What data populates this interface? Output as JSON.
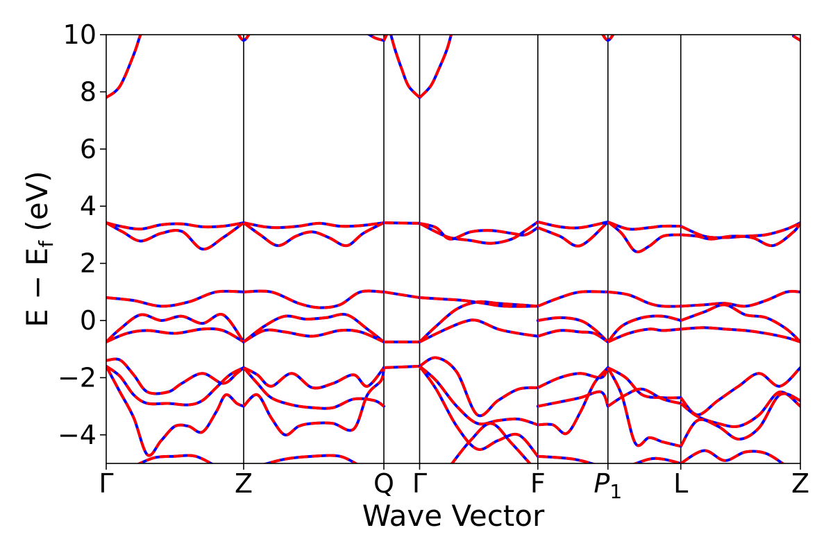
{
  "chart_data": {
    "type": "line",
    "xlabel": "Wave Vector",
    "ylabel": "E − E",
    "ylabel_sub": "f",
    "ylabel_unit": " (eV)",
    "ylim": [
      -5,
      10
    ],
    "yticks": [
      -4,
      -2,
      0,
      2,
      4,
      6,
      8,
      10
    ],
    "ytick_labels": [
      "−4",
      "−2",
      "0",
      "2",
      "4",
      "6",
      "8",
      "10"
    ],
    "xlim": [
      0,
      5.05
    ],
    "kpoints": [
      {
        "x": 0.0,
        "label": "Γ",
        "sub": ""
      },
      {
        "x": 1.0,
        "label": "Z",
        "sub": ""
      },
      {
        "x": 2.02,
        "label": "Q",
        "sub": ""
      },
      {
        "x": 2.28,
        "label": "Γ",
        "sub": ""
      },
      {
        "x": 3.14,
        "label": "F",
        "sub": ""
      },
      {
        "x": 3.65,
        "label": "P",
        "sub": "1"
      },
      {
        "x": 4.18,
        "label": "L",
        "sub": ""
      },
      {
        "x": 5.05,
        "label": "Z",
        "sub": ""
      }
    ],
    "line_colors": {
      "under": "#0000ff",
      "over": "#ff0000"
    },
    "series": [
      {
        "x": [
          0,
          0.1,
          0.2,
          0.25,
          0.3
        ],
        "y": [
          7.8,
          8.2,
          9.3,
          10,
          10.5
        ]
      },
      {
        "x": [
          0.95,
          1.0,
          1.05
        ],
        "y": [
          10.1,
          9.8,
          10.1
        ]
      },
      {
        "x": [
          1.85,
          1.95,
          2.02
        ],
        "y": [
          10.2,
          9.9,
          9.8
        ]
      },
      {
        "x": [
          2.02,
          2.06
        ],
        "y": [
          9.8,
          10.2
        ]
      },
      {
        "x": [
          2.28,
          2.2,
          2.15,
          2.1,
          2.06
        ],
        "y": [
          7.8,
          8.2,
          8.8,
          9.5,
          10.2
        ]
      },
      {
        "x": [
          2.28,
          2.36,
          2.42,
          2.48,
          2.52
        ],
        "y": [
          7.8,
          8.2,
          8.8,
          9.5,
          10.2
        ]
      },
      {
        "x": [
          3.6,
          3.65,
          3.7
        ],
        "y": [
          10.1,
          9.8,
          10.1
        ]
      },
      {
        "x": [
          5.0,
          5.05
        ],
        "y": [
          9.95,
          9.8
        ]
      },
      {
        "x": [
          0,
          0.1,
          0.25,
          0.4,
          0.55,
          0.7,
          0.85,
          1.0
        ],
        "y": [
          3.42,
          3.3,
          3.2,
          3.35,
          3.38,
          3.28,
          3.3,
          3.42
        ]
      },
      {
        "x": [
          0,
          0.12,
          0.25,
          0.4,
          0.55,
          0.7,
          0.85,
          1.0
        ],
        "y": [
          3.42,
          3.1,
          2.78,
          3.05,
          3.12,
          2.5,
          2.9,
          3.42
        ]
      },
      {
        "x": [
          1.0,
          1.15,
          1.25,
          1.4,
          1.55,
          1.7,
          1.85,
          2.02
        ],
        "y": [
          3.42,
          3.28,
          3.25,
          3.3,
          3.4,
          3.3,
          3.32,
          3.42
        ]
      },
      {
        "x": [
          1.0,
          1.12,
          1.25,
          1.38,
          1.5,
          1.62,
          1.75,
          1.87,
          2.02
        ],
        "y": [
          3.42,
          3.0,
          2.62,
          2.95,
          3.1,
          2.9,
          2.62,
          3.05,
          3.42
        ]
      },
      {
        "x": [
          2.02,
          2.28
        ],
        "y": [
          3.42,
          3.4
        ]
      },
      {
        "x": [
          2.28,
          2.4,
          2.5,
          2.65,
          2.8,
          2.95,
          3.05,
          3.14
        ],
        "y": [
          3.4,
          3.1,
          2.9,
          2.8,
          2.7,
          2.85,
          3.15,
          3.45
        ]
      },
      {
        "x": [
          2.28,
          2.4,
          2.5,
          2.65,
          2.8,
          2.95,
          3.05,
          3.14
        ],
        "y": [
          3.4,
          3.25,
          2.85,
          3.1,
          3.15,
          3.05,
          3.0,
          3.25
        ]
      },
      {
        "x": [
          3.14,
          3.3,
          3.45,
          3.65
        ],
        "y": [
          3.45,
          3.28,
          3.25,
          3.45
        ]
      },
      {
        "x": [
          3.14,
          3.3,
          3.45,
          3.65
        ],
        "y": [
          3.25,
          2.95,
          2.62,
          3.45
        ]
      },
      {
        "x": [
          3.65,
          3.8,
          3.95,
          4.05,
          4.18
        ],
        "y": [
          3.45,
          3.2,
          3.25,
          3.3,
          3.3
        ]
      },
      {
        "x": [
          3.65,
          3.75,
          3.85,
          3.95,
          4.05,
          4.18
        ],
        "y": [
          3.45,
          3.05,
          2.42,
          2.6,
          2.95,
          3.0
        ]
      },
      {
        "x": [
          4.18,
          4.35,
          4.5,
          4.65,
          4.8,
          4.95,
          5.05
        ],
        "y": [
          3.3,
          2.95,
          2.9,
          2.95,
          3.0,
          3.2,
          3.42
        ]
      },
      {
        "x": [
          4.18,
          4.3,
          4.4,
          4.55,
          4.7,
          4.85,
          5.0,
          5.05
        ],
        "y": [
          3.0,
          2.95,
          2.85,
          2.95,
          2.9,
          2.62,
          3.1,
          3.42
        ]
      },
      {
        "x": [
          0,
          0.2,
          0.4,
          0.6,
          0.8,
          1.0
        ],
        "y": [
          0.8,
          0.7,
          0.5,
          0.65,
          1.0,
          1.0
        ]
      },
      {
        "x": [
          0,
          0.1,
          0.25,
          0.4,
          0.55,
          0.7,
          0.85,
          1.0
        ],
        "y": [
          -0.75,
          -0.3,
          0.2,
          0.0,
          0.15,
          -0.1,
          0.2,
          -0.75
        ]
      },
      {
        "x": [
          0,
          0.15,
          0.3,
          0.5,
          0.7,
          0.85,
          1.0
        ],
        "y": [
          -0.75,
          -0.45,
          -0.35,
          -0.45,
          -0.3,
          -0.35,
          -0.75
        ]
      },
      {
        "x": [
          1.0,
          1.2,
          1.4,
          1.55,
          1.7,
          1.85,
          2.02
        ],
        "y": [
          1.0,
          1.0,
          0.6,
          0.45,
          0.55,
          1.0,
          1.0
        ]
      },
      {
        "x": [
          1.0,
          1.15,
          1.3,
          1.45,
          1.6,
          1.75,
          1.9,
          2.02
        ],
        "y": [
          -0.75,
          -0.2,
          0.15,
          0.05,
          0.1,
          0.2,
          -0.3,
          -0.75
        ]
      },
      {
        "x": [
          1.0,
          1.15,
          1.3,
          1.5,
          1.7,
          1.85,
          2.02
        ],
        "y": [
          -0.75,
          -0.35,
          -0.4,
          -0.55,
          -0.35,
          -0.4,
          -0.75
        ]
      },
      {
        "x": [
          2.02,
          2.28
        ],
        "y": [
          1.0,
          0.8
        ]
      },
      {
        "x": [
          2.02,
          2.28
        ],
        "y": [
          -0.75,
          -0.75
        ]
      },
      {
        "x": [
          2.28,
          2.45,
          2.6,
          2.75,
          2.9,
          3.14
        ],
        "y": [
          0.8,
          0.75,
          0.7,
          0.6,
          0.5,
          0.5
        ]
      },
      {
        "x": [
          2.28,
          2.4,
          2.55,
          2.7,
          2.85,
          3.0,
          3.14
        ],
        "y": [
          -0.75,
          -0.2,
          0.4,
          0.65,
          0.6,
          0.55,
          0.5
        ]
      },
      {
        "x": [
          2.28,
          2.45,
          2.6,
          2.7,
          2.85,
          3.0,
          3.14
        ],
        "y": [
          -0.75,
          -0.35,
          -0.05,
          0.0,
          -0.3,
          -0.45,
          -0.55
        ]
      },
      {
        "x": [
          3.14,
          3.3,
          3.45,
          3.65
        ],
        "y": [
          0.5,
          0.8,
          1.0,
          1.0
        ]
      },
      {
        "x": [
          3.14,
          3.3,
          3.45,
          3.55,
          3.65
        ],
        "y": [
          0.0,
          0.1,
          0.0,
          -0.3,
          -0.75
        ]
      },
      {
        "x": [
          3.14,
          3.3,
          3.45,
          3.55,
          3.65
        ],
        "y": [
          -0.55,
          -0.35,
          -0.4,
          -0.45,
          -0.75
        ]
      },
      {
        "x": [
          3.65,
          3.8,
          3.95,
          4.05,
          4.18
        ],
        "y": [
          1.0,
          0.9,
          0.6,
          0.5,
          0.5
        ]
      },
      {
        "x": [
          3.65,
          3.75,
          3.9,
          4.05,
          4.18
        ],
        "y": [
          -0.75,
          -0.2,
          0.1,
          0.15,
          0.0
        ]
      },
      {
        "x": [
          3.65,
          3.8,
          3.95,
          4.05,
          4.18
        ],
        "y": [
          -0.75,
          -0.45,
          -0.3,
          -0.35,
          -0.3
        ]
      },
      {
        "x": [
          4.18,
          4.35,
          4.5,
          4.65,
          4.8,
          4.95,
          5.05
        ],
        "y": [
          0.5,
          0.55,
          0.6,
          0.5,
          0.7,
          1.0,
          1.0
        ]
      },
      {
        "x": [
          4.18,
          4.35,
          4.5,
          4.65,
          4.8,
          4.95,
          5.05
        ],
        "y": [
          0.0,
          0.3,
          0.55,
          0.2,
          0.1,
          -0.3,
          -0.75
        ]
      },
      {
        "x": [
          4.18,
          4.35,
          4.5,
          4.65,
          4.8,
          4.95,
          5.05
        ],
        "y": [
          -0.3,
          -0.25,
          -0.3,
          -0.35,
          -0.45,
          -0.6,
          -0.75
        ]
      },
      {
        "x": [
          0,
          0.1,
          0.2,
          0.3,
          0.45,
          0.55,
          0.7,
          0.85,
          0.95,
          1.0
        ],
        "y": [
          -1.4,
          -1.38,
          -1.9,
          -2.5,
          -2.5,
          -2.2,
          -1.85,
          -2.2,
          -1.85,
          -1.65
        ]
      },
      {
        "x": [
          0,
          0.1,
          0.2,
          0.3,
          0.45,
          0.6,
          0.7,
          0.8,
          0.9,
          1.0
        ],
        "y": [
          -1.6,
          -1.95,
          -2.6,
          -2.9,
          -2.9,
          -2.95,
          -2.8,
          -2.35,
          -1.9,
          -1.65
        ]
      },
      {
        "x": [
          0,
          0.1,
          0.2,
          0.3,
          0.4,
          0.5,
          0.6,
          0.7,
          0.8,
          0.87,
          0.95,
          1.0
        ],
        "y": [
          -1.6,
          -2.5,
          -3.4,
          -4.7,
          -4.2,
          -3.7,
          -3.7,
          -3.9,
          -3.2,
          -2.6,
          -2.9,
          -3.0
        ]
      },
      {
        "x": [
          0.2,
          0.35,
          0.5,
          0.65,
          0.8
        ],
        "y": [
          -5.1,
          -4.8,
          -4.75,
          -4.75,
          -5.1
        ]
      },
      {
        "x": [
          1.0,
          1.1,
          1.2,
          1.35,
          1.5,
          1.65,
          1.8,
          1.9,
          2.02
        ],
        "y": [
          -1.65,
          -1.9,
          -2.3,
          -1.85,
          -2.35,
          -2.2,
          -1.9,
          -2.3,
          -1.65
        ]
      },
      {
        "x": [
          1.0,
          1.1,
          1.2,
          1.35,
          1.5,
          1.65,
          1.8,
          1.95,
          2.02
        ],
        "y": [
          -1.65,
          -2.2,
          -2.7,
          -2.95,
          -3.05,
          -3.05,
          -2.75,
          -2.8,
          -3.0
        ]
      },
      {
        "x": [
          1.0,
          1.1,
          1.2,
          1.3,
          1.4,
          1.5,
          1.65,
          1.8,
          1.9,
          2.0,
          2.02
        ],
        "y": [
          -3.0,
          -2.6,
          -3.4,
          -4.0,
          -3.7,
          -3.6,
          -3.6,
          -3.8,
          -2.6,
          -2.1,
          -1.65
        ]
      },
      {
        "x": [
          1.1,
          1.3,
          1.5,
          1.7,
          1.85
        ],
        "y": [
          -5.1,
          -4.85,
          -4.75,
          -4.75,
          -5.1
        ]
      },
      {
        "x": [
          2.02,
          2.28
        ],
        "y": [
          -1.65,
          -1.6
        ]
      },
      {
        "x": [
          2.28,
          2.4,
          2.55,
          2.7,
          2.85,
          3.0,
          3.14
        ],
        "y": [
          -1.6,
          -1.3,
          -1.8,
          -3.3,
          -2.8,
          -2.4,
          -2.35
        ]
      },
      {
        "x": [
          2.28,
          2.4,
          2.55,
          2.7,
          2.85,
          3.0,
          3.14
        ],
        "y": [
          -1.6,
          -2.1,
          -3.0,
          -3.6,
          -3.5,
          -3.45,
          -3.65
        ]
      },
      {
        "x": [
          2.28,
          2.4,
          2.55,
          2.7,
          2.85,
          3.0,
          3.14
        ],
        "y": [
          -1.6,
          -2.4,
          -3.7,
          -4.5,
          -4.2,
          -4.0,
          -4.75
        ]
      },
      {
        "x": [
          2.5,
          2.65,
          2.8,
          2.95,
          3.1
        ],
        "y": [
          -5.1,
          -4.2,
          -3.6,
          -4.3,
          -5.1
        ]
      },
      {
        "x": [
          3.14,
          3.3,
          3.45,
          3.6,
          3.65
        ],
        "y": [
          -2.35,
          -2.0,
          -1.85,
          -2.0,
          -1.65
        ]
      },
      {
        "x": [
          3.14,
          3.3,
          3.45,
          3.6,
          3.65
        ],
        "y": [
          -3.0,
          -2.85,
          -2.7,
          -2.5,
          -3.0
        ]
      },
      {
        "x": [
          3.14,
          3.25,
          3.35,
          3.45,
          3.55,
          3.65
        ],
        "y": [
          -3.65,
          -3.65,
          -3.95,
          -3.2,
          -2.2,
          -1.65
        ]
      },
      {
        "x": [
          3.14,
          3.4,
          3.6
        ],
        "y": [
          -4.75,
          -4.85,
          -5.1
        ]
      },
      {
        "x": [
          3.65,
          3.78,
          3.9,
          4.05,
          4.18
        ],
        "y": [
          -1.65,
          -2.0,
          -2.6,
          -2.7,
          -2.7
        ]
      },
      {
        "x": [
          3.65,
          3.78,
          3.9,
          4.05,
          4.18
        ],
        "y": [
          -3.0,
          -2.6,
          -2.4,
          -2.75,
          -2.9
        ]
      },
      {
        "x": [
          3.65,
          3.75,
          3.85,
          3.95,
          4.05,
          4.18
        ],
        "y": [
          -1.65,
          -2.6,
          -4.3,
          -4.1,
          -4.25,
          -4.4
        ]
      },
      {
        "x": [
          3.8,
          3.95,
          4.05,
          4.18
        ],
        "y": [
          -5.1,
          -4.85,
          -4.85,
          -5.0
        ]
      },
      {
        "x": [
          4.18,
          4.3,
          4.45,
          4.6,
          4.75,
          4.9,
          5.05
        ],
        "y": [
          -2.7,
          -3.3,
          -2.8,
          -2.3,
          -1.85,
          -2.3,
          -1.65
        ]
      },
      {
        "x": [
          4.18,
          4.3,
          4.45,
          4.6,
          4.75,
          4.9,
          5.05
        ],
        "y": [
          -2.9,
          -3.35,
          -3.6,
          -3.7,
          -3.3,
          -2.5,
          -3.0
        ]
      },
      {
        "x": [
          4.18,
          4.3,
          4.45,
          4.6,
          4.75,
          4.9,
          5.05
        ],
        "y": [
          -4.4,
          -3.5,
          -3.7,
          -4.15,
          -3.75,
          -2.6,
          -2.8
        ]
      },
      {
        "x": [
          4.18,
          4.35,
          4.5,
          4.65,
          4.8,
          4.95
        ],
        "y": [
          -5.0,
          -4.55,
          -4.9,
          -4.6,
          -4.65,
          -5.1
        ]
      }
    ]
  }
}
